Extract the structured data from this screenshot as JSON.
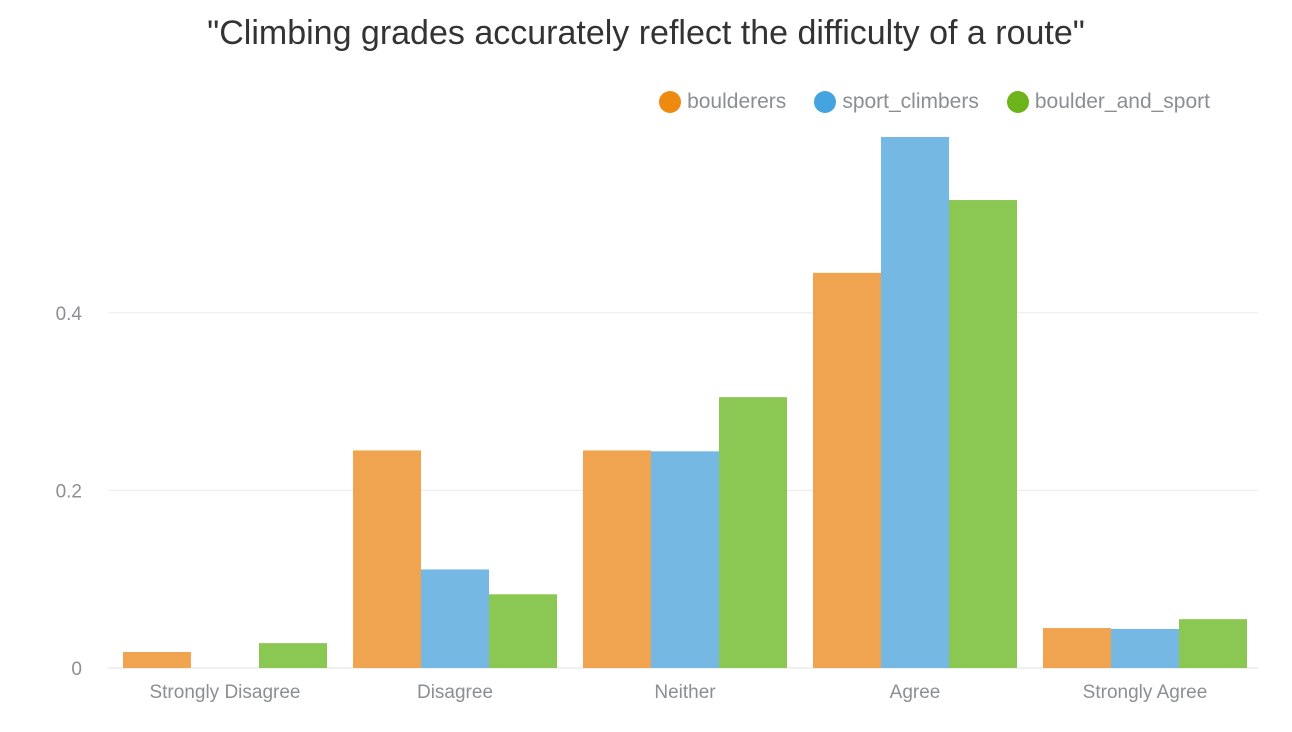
{
  "chart_data": {
    "type": "bar",
    "title": "\"Climbing grades accurately reflect the difficulty of a route\"",
    "xlabel": "",
    "ylabel": "",
    "categories": [
      "Strongly Disagree",
      "Disagree",
      "Neither",
      "Agree",
      "Strongly Agree"
    ],
    "series": [
      {
        "name": "boulderers",
        "color": "#f0a44f",
        "legend_color": "#ee8a0f",
        "values": [
          0.018,
          0.245,
          0.245,
          0.445,
          0.045
        ]
      },
      {
        "name": "sport_climbers",
        "color": "#75b8e3",
        "legend_color": "#43a4e0",
        "values": [
          0.0,
          0.111,
          0.244,
          0.598,
          0.044
        ]
      },
      {
        "name": "boulder_and_sport",
        "color": "#8bc753",
        "legend_color": "#6cb41a",
        "values": [
          0.028,
          0.083,
          0.305,
          0.527,
          0.055
        ]
      }
    ],
    "yticks": [
      0,
      0.2,
      0.4
    ],
    "ytick_labels": [
      "0",
      "0.2",
      "0.4"
    ],
    "ylim": [
      0,
      0.6
    ],
    "grid": true,
    "legend_position": "top-right"
  }
}
